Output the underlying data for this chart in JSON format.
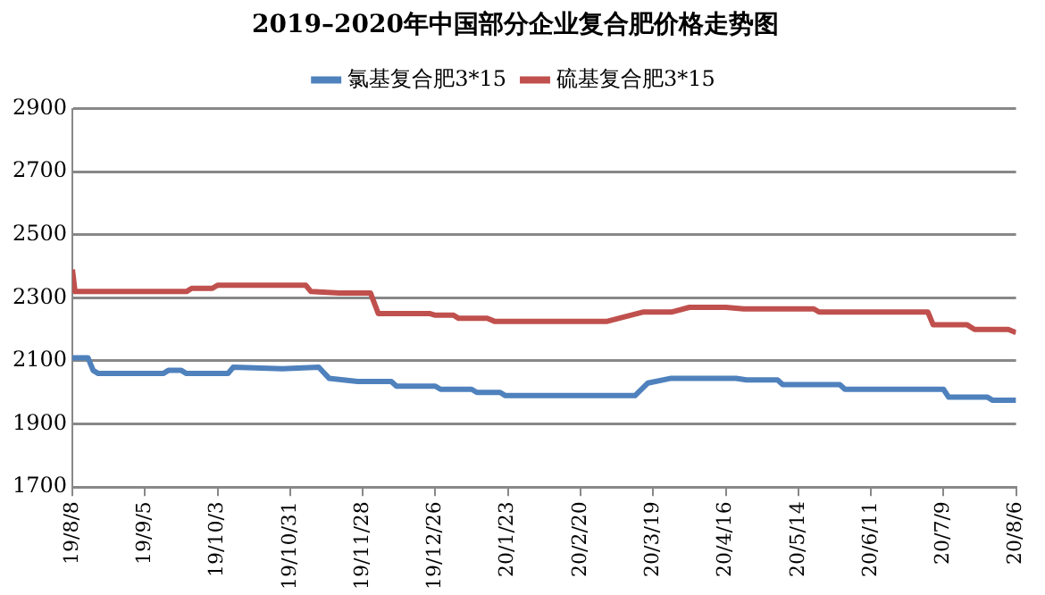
{
  "chart_data": {
    "type": "line",
    "title": "2019–2020年中国部分企业复合肥价格走势图",
    "xlim": [
      "2019-08-08",
      "2020-08-06"
    ],
    "xticks": [
      {
        "value": "2019-08-08",
        "label": "19/8/8"
      },
      {
        "value": "2019-09-05",
        "label": "19/9/5"
      },
      {
        "value": "2019-10-03",
        "label": "19/10/3"
      },
      {
        "value": "2019-10-31",
        "label": "19/10/31"
      },
      {
        "value": "2019-11-28",
        "label": "19/11/28"
      },
      {
        "value": "2019-12-26",
        "label": "19/12/26"
      },
      {
        "value": "2020-01-23",
        "label": "20/1/23"
      },
      {
        "value": "2020-02-20",
        "label": "20/2/20"
      },
      {
        "value": "2020-03-19",
        "label": "20/3/19"
      },
      {
        "value": "2020-04-16",
        "label": "20/4/16"
      },
      {
        "value": "2020-05-14",
        "label": "20/5/14"
      },
      {
        "value": "2020-06-11",
        "label": "20/6/11"
      },
      {
        "value": "2020-07-09",
        "label": "20/7/9"
      },
      {
        "value": "2020-08-06",
        "label": "20/8/6"
      }
    ],
    "ylim": [
      1700,
      2900
    ],
    "yticks": [
      1700,
      1900,
      2100,
      2300,
      2500,
      2700,
      2900
    ],
    "grid": "y",
    "legend": "top",
    "marker": "none",
    "line_style": "solid",
    "series": [
      {
        "name": "氯基复合肥3*15",
        "color": "#4f81bd",
        "x": [
          "2019-08-08",
          "2019-08-14",
          "2019-08-16",
          "2019-08-18",
          "2019-09-12",
          "2019-09-14",
          "2019-09-19",
          "2019-09-21",
          "2019-10-07",
          "2019-10-09",
          "2019-10-28",
          "2019-11-11",
          "2019-11-15",
          "2019-11-26",
          "2019-12-09",
          "2019-12-11",
          "2019-12-26",
          "2019-12-28",
          "2020-01-09",
          "2020-01-11",
          "2020-01-20",
          "2020-01-22",
          "2020-03-12",
          "2020-03-17",
          "2020-03-26",
          "2020-04-20",
          "2020-04-24",
          "2020-05-06",
          "2020-05-08",
          "2020-05-30",
          "2020-06-01",
          "2020-07-09",
          "2020-07-11",
          "2020-07-26",
          "2020-07-28",
          "2020-08-06"
        ],
        "values": [
          2110,
          2110,
          2070,
          2060,
          2060,
          2070,
          2070,
          2060,
          2060,
          2080,
          2075,
          2080,
          2045,
          2035,
          2035,
          2020,
          2020,
          2010,
          2010,
          2000,
          2000,
          1990,
          1990,
          2030,
          2045,
          2045,
          2040,
          2040,
          2025,
          2025,
          2010,
          2010,
          1985,
          1985,
          1975,
          1975
        ]
      },
      {
        "name": "硫基复合肥3*15",
        "color": "#c0504d",
        "x": [
          "2019-08-08",
          "2019-08-09",
          "2019-09-21",
          "2019-09-23",
          "2019-10-01",
          "2019-10-03",
          "2019-11-06",
          "2019-11-08",
          "2019-11-19",
          "2019-12-01",
          "2019-12-04",
          "2019-12-24",
          "2019-12-26",
          "2020-01-02",
          "2020-01-04",
          "2020-01-15",
          "2020-01-18",
          "2020-03-01",
          "2020-03-15",
          "2020-03-26",
          "2020-04-02",
          "2020-04-16",
          "2020-04-23",
          "2020-05-20",
          "2020-05-22",
          "2020-07-03",
          "2020-07-05",
          "2020-07-18",
          "2020-07-21",
          "2020-08-03",
          "2020-08-06"
        ],
        "values": [
          2390,
          2320,
          2320,
          2330,
          2330,
          2340,
          2340,
          2320,
          2315,
          2315,
          2250,
          2250,
          2245,
          2245,
          2235,
          2235,
          2225,
          2225,
          2255,
          2255,
          2270,
          2270,
          2265,
          2265,
          2255,
          2255,
          2215,
          2215,
          2200,
          2200,
          2190
        ]
      }
    ]
  }
}
